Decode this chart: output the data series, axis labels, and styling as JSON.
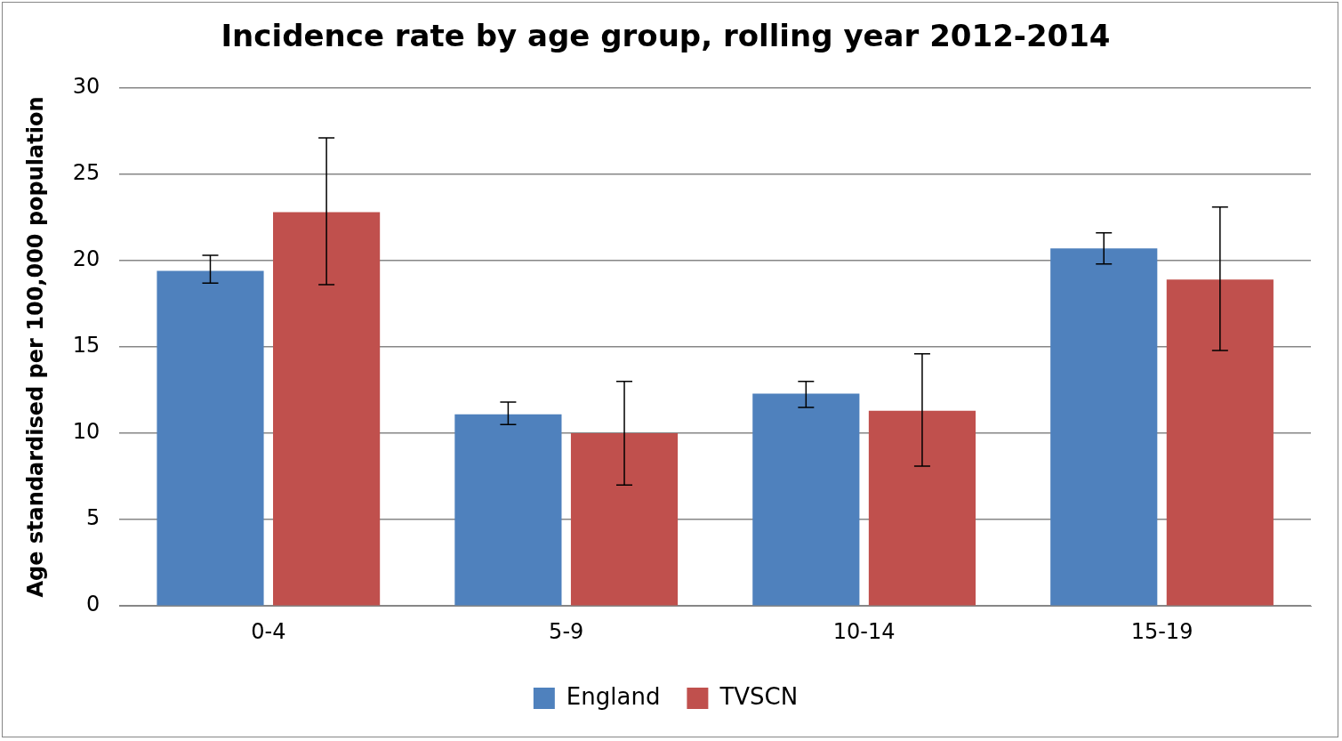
{
  "chart_data": {
    "type": "bar",
    "title": "Incidence rate by age group, rolling year 2012-2014",
    "ylabel": "Age standardised per 100,000 population",
    "categories": [
      "0-4",
      "5-9",
      "10-14",
      "15-19"
    ],
    "series": [
      {
        "name": "England",
        "color": "#4f81bd",
        "values": [
          19.4,
          11.1,
          12.3,
          20.7
        ],
        "errors": [
          [
            18.7,
            20.3
          ],
          [
            10.5,
            11.8
          ],
          [
            11.5,
            13.0
          ],
          [
            19.8,
            21.6
          ]
        ]
      },
      {
        "name": "TVSCN",
        "color": "#c0504d",
        "values": [
          22.8,
          10.0,
          11.3,
          18.9
        ],
        "errors": [
          [
            18.6,
            27.1
          ],
          [
            7.0,
            13.0
          ],
          [
            8.1,
            14.6
          ],
          [
            14.8,
            23.1
          ]
        ]
      }
    ],
    "ylim": [
      0,
      30
    ],
    "yticks": [
      0,
      5,
      10,
      15,
      20,
      25,
      30
    ],
    "grid": "y",
    "legend": "bottom"
  }
}
